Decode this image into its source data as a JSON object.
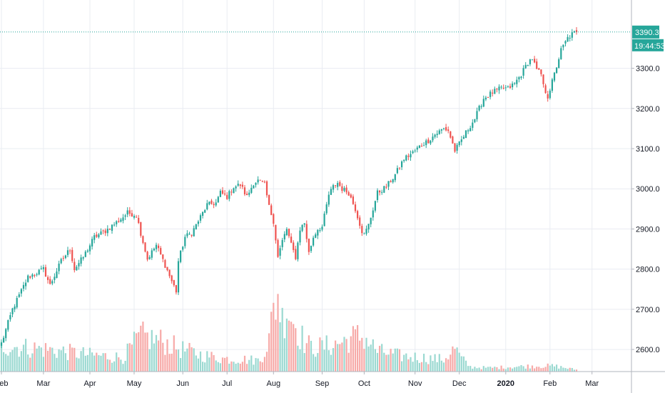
{
  "chart_data": {
    "type": "candlestick",
    "last_price": 3390.3,
    "last_price_label": "3390.3",
    "countdown_label": "19:44:53",
    "ylim": [
      2545,
      3470
    ],
    "y_ticks": [
      {
        "value": 3300,
        "label": "3300.0"
      },
      {
        "value": 3200,
        "label": "3200.0"
      },
      {
        "value": 3100,
        "label": "3100.0"
      },
      {
        "value": 3000,
        "label": "3000.0"
      },
      {
        "value": 2900,
        "label": "2900.0"
      },
      {
        "value": 2800,
        "label": "2800.0"
      },
      {
        "value": 2700,
        "label": "2700.0"
      },
      {
        "value": 2600,
        "label": "2600.0"
      }
    ],
    "x_ticks": [
      {
        "index": 0,
        "label": "Feb",
        "bold": false
      },
      {
        "index": 19,
        "label": "Mar",
        "bold": false
      },
      {
        "index": 40,
        "label": "Apr",
        "bold": false
      },
      {
        "index": 60,
        "label": "May",
        "bold": false
      },
      {
        "index": 82,
        "label": "Jun",
        "bold": false
      },
      {
        "index": 102,
        "label": "Jul",
        "bold": false
      },
      {
        "index": 123,
        "label": "Aug",
        "bold": false
      },
      {
        "index": 145,
        "label": "Sep",
        "bold": false
      },
      {
        "index": 164,
        "label": "Oct",
        "bold": false
      },
      {
        "index": 187,
        "label": "Nov",
        "bold": false
      },
      {
        "index": 207,
        "label": "Dec",
        "bold": false
      },
      {
        "index": 228,
        "label": "2020",
        "bold": true
      },
      {
        "index": 248,
        "label": "Feb",
        "bold": false
      },
      {
        "index": 267,
        "label": "Mar",
        "bold": false
      }
    ],
    "close_anchors": [
      [
        0,
        2615
      ],
      [
        5,
        2700
      ],
      [
        12,
        2780
      ],
      [
        19,
        2800
      ],
      [
        22,
        2760
      ],
      [
        27,
        2820
      ],
      [
        31,
        2850
      ],
      [
        33,
        2800
      ],
      [
        37,
        2830
      ],
      [
        42,
        2880
      ],
      [
        47,
        2895
      ],
      [
        54,
        2925
      ],
      [
        57,
        2940
      ],
      [
        61,
        2935
      ],
      [
        63,
        2890
      ],
      [
        66,
        2825
      ],
      [
        70,
        2860
      ],
      [
        74,
        2810
      ],
      [
        77,
        2770
      ],
      [
        79,
        2745
      ],
      [
        80,
        2820
      ],
      [
        83,
        2880
      ],
      [
        86,
        2890
      ],
      [
        89,
        2920
      ],
      [
        93,
        2960
      ],
      [
        97,
        2965
      ],
      [
        99,
        2990
      ],
      [
        102,
        2980
      ],
      [
        105,
        3005
      ],
      [
        108,
        3010
      ],
      [
        111,
        2980
      ],
      [
        114,
        3015
      ],
      [
        116,
        3020
      ],
      [
        119,
        3010
      ],
      [
        121,
        2955
      ],
      [
        123,
        2920
      ],
      [
        125,
        2830
      ],
      [
        127,
        2870
      ],
      [
        129,
        2900
      ],
      [
        131,
        2860
      ],
      [
        133,
        2830
      ],
      [
        135,
        2900
      ],
      [
        137,
        2915
      ],
      [
        139,
        2840
      ],
      [
        141,
        2880
      ],
      [
        143,
        2900
      ],
      [
        145,
        2905
      ],
      [
        148,
        2985
      ],
      [
        150,
        3005
      ],
      [
        152,
        3015
      ],
      [
        154,
        3000
      ],
      [
        157,
        2990
      ],
      [
        160,
        2950
      ],
      [
        163,
        2895
      ],
      [
        164,
        2885
      ],
      [
        166,
        2910
      ],
      [
        168,
        2950
      ],
      [
        170,
        2990
      ],
      [
        174,
        3005
      ],
      [
        178,
        3035
      ],
      [
        182,
        3075
      ],
      [
        186,
        3090
      ],
      [
        190,
        3110
      ],
      [
        193,
        3120
      ],
      [
        196,
        3135
      ],
      [
        200,
        3150
      ],
      [
        202,
        3145
      ],
      [
        205,
        3095
      ],
      [
        207,
        3112
      ],
      [
        210,
        3140
      ],
      [
        214,
        3175
      ],
      [
        218,
        3225
      ],
      [
        222,
        3240
      ],
      [
        226,
        3250
      ],
      [
        229,
        3250
      ],
      [
        232,
        3262
      ],
      [
        235,
        3285
      ],
      [
        238,
        3315
      ],
      [
        240,
        3325
      ],
      [
        242,
        3295
      ],
      [
        244,
        3285
      ],
      [
        245,
        3255
      ],
      [
        247,
        3230
      ],
      [
        250,
        3285
      ],
      [
        253,
        3345
      ],
      [
        256,
        3375
      ],
      [
        258,
        3385
      ],
      [
        260,
        3390.3
      ]
    ],
    "volume_anchors": [
      [
        0,
        0.28
      ],
      [
        20,
        0.24
      ],
      [
        40,
        0.18
      ],
      [
        55,
        0.15
      ],
      [
        60,
        0.3
      ],
      [
        63,
        0.38
      ],
      [
        67,
        0.36
      ],
      [
        72,
        0.33
      ],
      [
        80,
        0.25
      ],
      [
        90,
        0.18
      ],
      [
        100,
        0.14
      ],
      [
        110,
        0.13
      ],
      [
        117,
        0.12
      ],
      [
        121,
        0.35
      ],
      [
        123,
        0.65
      ],
      [
        125,
        0.85
      ],
      [
        127,
        0.55
      ],
      [
        129,
        0.72
      ],
      [
        131,
        0.6
      ],
      [
        134,
        0.45
      ],
      [
        137,
        0.32
      ],
      [
        140,
        0.26
      ],
      [
        146,
        0.27
      ],
      [
        152,
        0.3
      ],
      [
        158,
        0.36
      ],
      [
        162,
        0.38
      ],
      [
        165,
        0.35
      ],
      [
        170,
        0.22
      ],
      [
        180,
        0.17
      ],
      [
        190,
        0.15
      ],
      [
        200,
        0.13
      ],
      [
        205,
        0.25
      ],
      [
        208,
        0.14
      ],
      [
        212,
        0.05
      ],
      [
        220,
        0.04
      ],
      [
        230,
        0.05
      ],
      [
        240,
        0.06
      ],
      [
        250,
        0.06
      ],
      [
        260,
        0.02
      ]
    ],
    "colors": {
      "up": "#26a69a",
      "down": "#ef5350",
      "volume_up": "#9bd9d1",
      "volume_down": "#f7aaa8",
      "grid": "#e9ecf2",
      "axis_line": "#b2b5be",
      "price_line": "#26a69a",
      "text": "#131722"
    }
  }
}
